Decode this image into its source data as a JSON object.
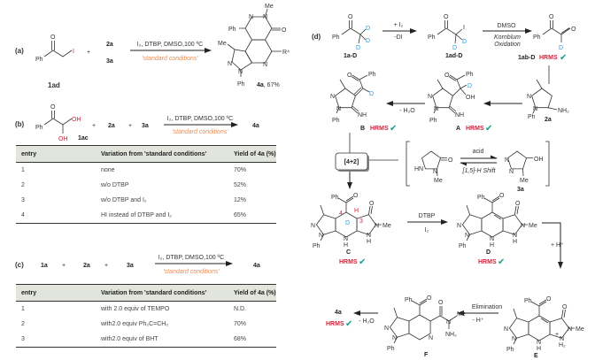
{
  "colors": {
    "highlight_red": "#d6203a",
    "deuterium_blue": "#2a9bd6",
    "conditions_orange": "#f08a4b",
    "check_teal": "#1a9e8f"
  },
  "check_icon": "checkmark-icon",
  "a": {
    "label": "(a)",
    "atoms_1ad": [
      "O",
      "Ph",
      "I"
    ],
    "name_1ad": "1ad",
    "plus": "+",
    "r2": "2a",
    "r3": "3a",
    "conditions": "I₂, DTBP, DMSO,100 ºC",
    "standard": "'standard conditions'",
    "product_atoms": [
      "N",
      "N",
      "Me",
      "O",
      "Ph",
      "Me",
      "N",
      "N",
      "N",
      "Ph",
      "R⁴"
    ],
    "product": "4a",
    "yield": ", 67%"
  },
  "b": {
    "label": "(b)",
    "atoms_1ac": [
      "O",
      "Ph",
      "OH",
      "OH"
    ],
    "name_1ac": "1ac",
    "plus": "+",
    "r2": "2a",
    "r3": "3a",
    "conditions": "I₂, DTBP, DMSO,100 ºC",
    "standard": "'standard conditions'",
    "product": "4a",
    "table": {
      "headers": [
        "entry",
        "Variation from 'standard conditions'",
        "Yield of 4a (%)"
      ],
      "rows": [
        [
          "1",
          "none",
          "70%"
        ],
        [
          "2",
          "w/o DTBP",
          "52%"
        ],
        [
          "3",
          "w/o DTBP and I₂",
          "12%"
        ],
        [
          "4",
          "HI instead of  DTBP and I₂",
          "65%"
        ]
      ]
    }
  },
  "c": {
    "label": "(c)",
    "r1": "1a",
    "plus": "+",
    "r2": "2a",
    "r3": "3a",
    "conditions": "I₂, DTBP, DMSO,100 ºC",
    "standard": "'standard conditions'",
    "product": "4a",
    "table": {
      "headers": [
        "entry",
        "Variation from 'standard conditions'",
        "Yield of 4a (%)"
      ],
      "rows": [
        [
          "1",
          "with 2.0 equiv of TEMPO",
          "N.D."
        ],
        [
          "2",
          "with2.0 equiv  Ph₂C=CH₂",
          "70%"
        ],
        [
          "3",
          "with2.0 equiv of BHT",
          "68%"
        ]
      ]
    }
  },
  "d": {
    "label": "(d)",
    "hrms": "HRMS",
    "s1aD": {
      "atoms": [
        "O",
        "Ph",
        "D",
        "D",
        "D"
      ],
      "name": "1a-D"
    },
    "step1": {
      "top": "+ I₂",
      "bottom": "-DI"
    },
    "s1adD": {
      "atoms": [
        "O",
        "Ph",
        "I",
        "D",
        "D"
      ],
      "name": "1ad-D"
    },
    "step2": {
      "top": "DMSO",
      "mid": "Kornblum",
      "bottom": "Oxidation"
    },
    "s1abD": {
      "atoms": [
        "O",
        "Ph",
        "O",
        "D"
      ],
      "name": "1ab-D"
    },
    "s2a": {
      "atoms": [
        "N",
        "N",
        "Ph",
        "NH₂"
      ],
      "name": "2a"
    },
    "A": {
      "atoms": [
        "N",
        "N",
        "Ph",
        "NH",
        "D",
        "OH",
        "O",
        "Ph"
      ],
      "name": "A"
    },
    "stepB": "- H₂O",
    "B": {
      "atoms": [
        "N",
        "N",
        "Ph",
        "NH",
        "D",
        "O",
        "Ph"
      ],
      "name": "B"
    },
    "cyclo": "[4+2]",
    "taut": {
      "keto": [
        "HN",
        "N",
        "O",
        "Me"
      ],
      "enol": [
        "N",
        "N",
        "OH",
        "Me"
      ],
      "acid": "acid",
      "shift": "[1,5]-H Shift",
      "name": "3a"
    },
    "C": {
      "atoms": [
        "N",
        "N",
        "Ph",
        "N",
        "H",
        "Ph",
        "O",
        "4",
        "D",
        "H",
        "3",
        "O",
        "N",
        "Me",
        "N",
        "H"
      ],
      "name": "C"
    },
    "stepD": {
      "top": "DTBP",
      "bottom": "I₂"
    },
    "D": {
      "atoms": [
        "N",
        "N",
        "Ph",
        "N",
        "H",
        "Ph",
        "O",
        "O",
        "N",
        "Me",
        "N",
        "H"
      ],
      "name": "D"
    },
    "stepE": "+ H⁺",
    "E": {
      "atoms": [
        "N",
        "N",
        "Ph",
        "N",
        "H",
        "Ph",
        "O",
        "O",
        "N",
        "Me",
        "N",
        "H₂",
        "+"
      ],
      "name": "E"
    },
    "stepF": {
      "top": "Elimination",
      "bottom": "- H⁺"
    },
    "F": {
      "atoms": [
        "N",
        "N",
        "Ph",
        "N",
        "Ph",
        "O",
        "O",
        "N",
        "Me",
        "NH₂"
      ],
      "name": "F"
    },
    "step4a": "- H₂O",
    "final": "4a"
  }
}
